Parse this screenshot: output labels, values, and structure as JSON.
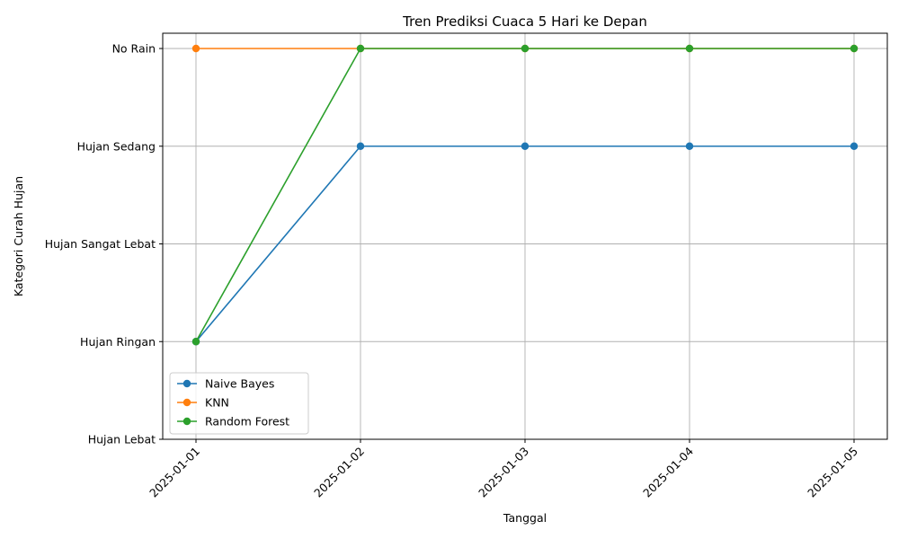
{
  "chart_data": {
    "type": "line",
    "title": "Tren Prediksi Cuaca 5 Hari ke Depan",
    "xlabel": "Tanggal",
    "ylabel": "Kategori Curah Hujan",
    "x": [
      "2025-01-01",
      "2025-01-02",
      "2025-01-03",
      "2025-01-04",
      "2025-01-05"
    ],
    "y_categories": [
      "Hujan Lebat",
      "Hujan Ringan",
      "Hujan Sangat Lebat",
      "Hujan Sedang",
      "No Rain"
    ],
    "grid": true,
    "legend_position": "lower-left",
    "series": [
      {
        "name": "Naive Bayes",
        "color": "#1f77b4",
        "values": [
          "Hujan Ringan",
          "Hujan Sedang",
          "Hujan Sedang",
          "Hujan Sedang",
          "Hujan Sedang"
        ]
      },
      {
        "name": "KNN",
        "color": "#ff7f0e",
        "values": [
          "No Rain",
          "No Rain",
          "No Rain",
          "No Rain",
          "No Rain"
        ]
      },
      {
        "name": "Random Forest",
        "color": "#2ca02c",
        "values": [
          "Hujan Ringan",
          "No Rain",
          "No Rain",
          "No Rain",
          "No Rain"
        ]
      }
    ]
  }
}
